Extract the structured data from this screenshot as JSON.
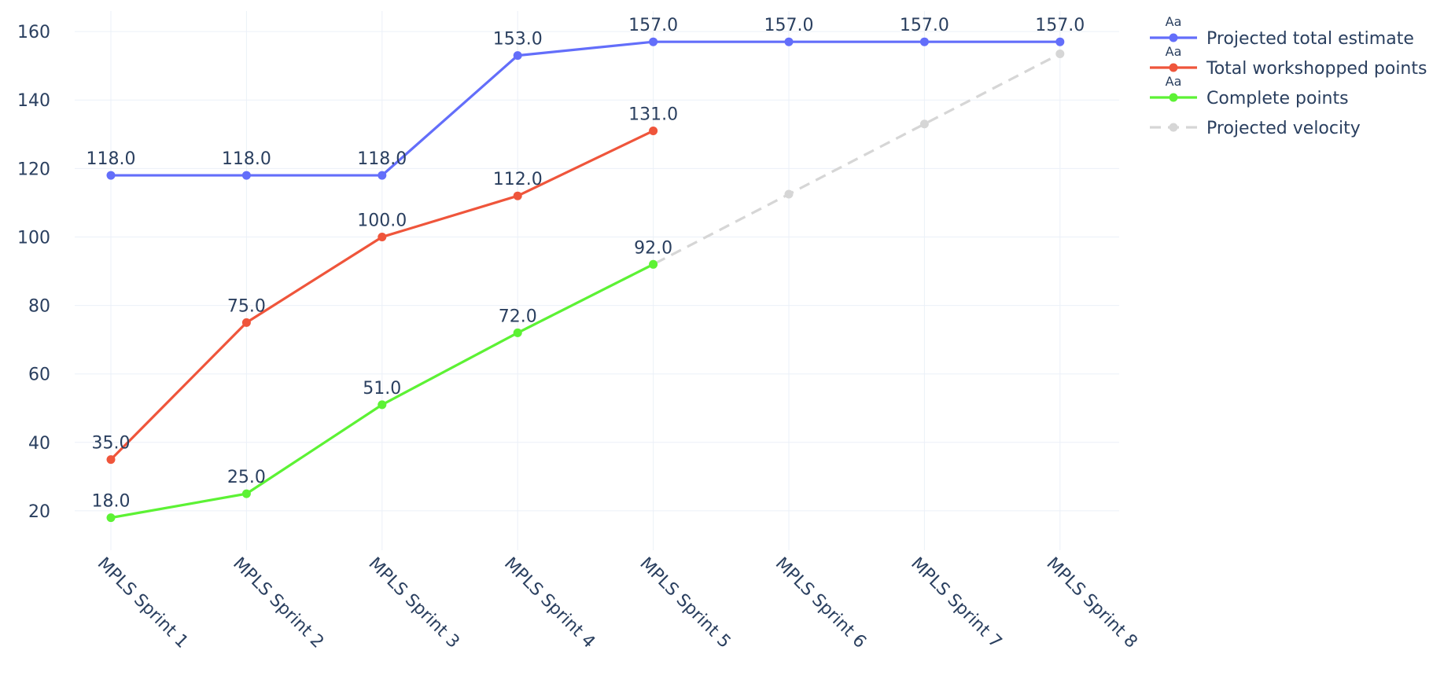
{
  "chart_data": {
    "type": "line",
    "title": "",
    "xlabel": "",
    "ylabel": "",
    "categories": [
      "MPLS Sprint 1",
      "MPLS Sprint 2",
      "MPLS Sprint 3",
      "MPLS Sprint 4",
      "MPLS Sprint 5",
      "MPLS Sprint 6",
      "MPLS Sprint 7",
      "MPLS Sprint 8"
    ],
    "ylim": [
      8.5,
      166
    ],
    "yticks": [
      20,
      40,
      60,
      80,
      100,
      120,
      140,
      160
    ],
    "grid": true,
    "legend_position": "top-right",
    "series": [
      {
        "name": "Projected total estimate",
        "color": "#636efa",
        "dash": false,
        "labels": true,
        "legend_badge": "Aa",
        "values": [
          118,
          118,
          118,
          153,
          157,
          157,
          157,
          157
        ],
        "label_text": [
          "118.0",
          "118.0",
          "118.0",
          "153.0",
          "157.0",
          "157.0",
          "157.0",
          "157.0"
        ]
      },
      {
        "name": "Total workshopped points",
        "color": "#ef553b",
        "dash": false,
        "labels": true,
        "legend_badge": "Aa",
        "values": [
          35,
          75,
          100,
          112,
          131,
          null,
          null,
          null
        ],
        "label_text": [
          "35.0",
          "75.0",
          "100.0",
          "112.0",
          "131.0"
        ]
      },
      {
        "name": "Complete points",
        "color": "#5cf234",
        "dash": false,
        "labels": true,
        "legend_badge": "Aa",
        "values": [
          18,
          25,
          51,
          72,
          92,
          null,
          null,
          null
        ],
        "label_text": [
          "18.0",
          "25.0",
          "51.0",
          "72.0",
          "92.0"
        ]
      },
      {
        "name": "Projected velocity",
        "color": "#d6d6d6",
        "dash": true,
        "labels": false,
        "legend_badge": "",
        "values": [
          null,
          null,
          51,
          72,
          92,
          112.5,
          133,
          153.5
        ],
        "label_text": []
      }
    ]
  }
}
